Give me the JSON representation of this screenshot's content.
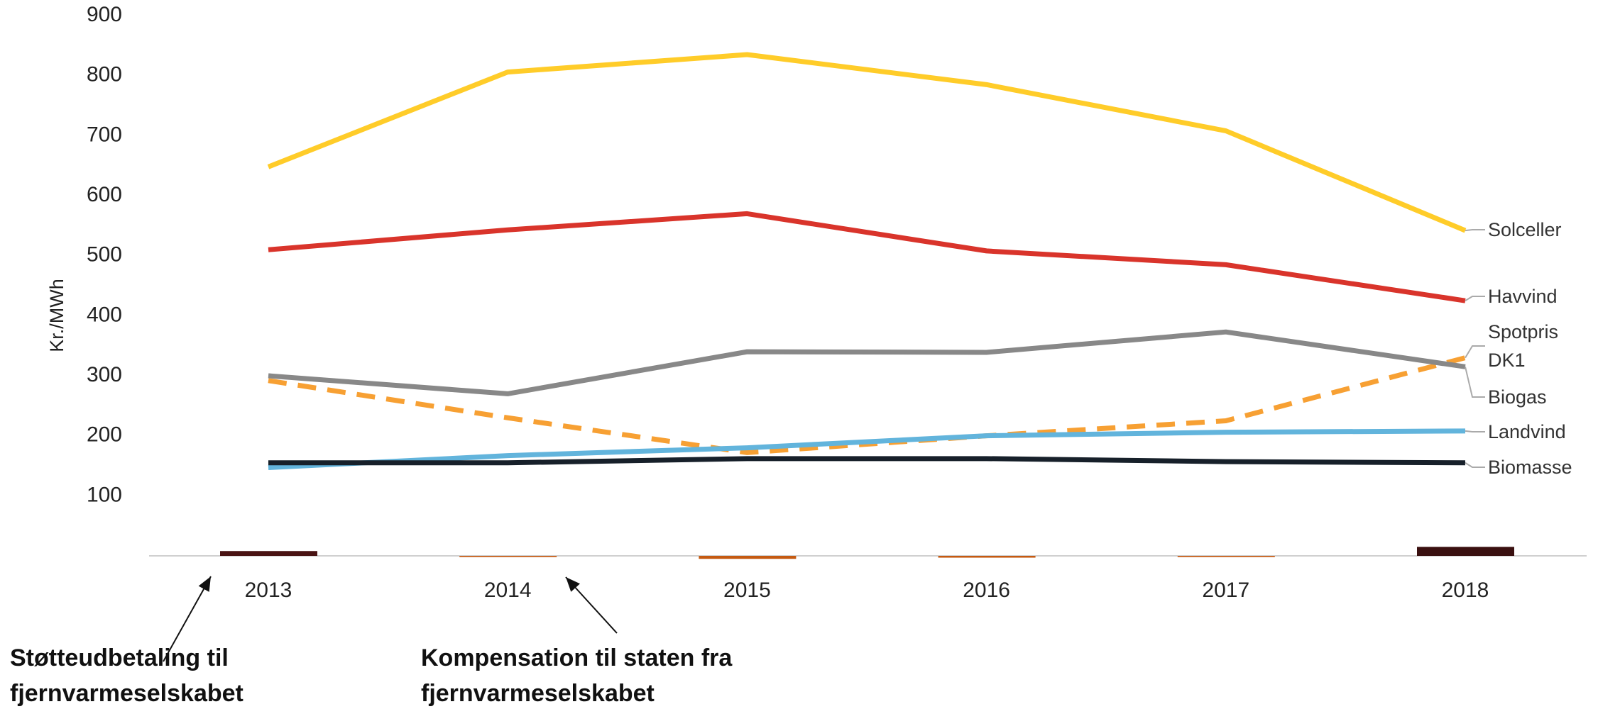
{
  "chart_data": {
    "type": "line",
    "y_label": "Kr./MWh",
    "categories": [
      "2013",
      "2014",
      "2015",
      "2016",
      "2017",
      "2018"
    ],
    "ylim": [
      0,
      900
    ],
    "yticks": [
      100,
      200,
      300,
      400,
      500,
      600,
      700,
      800,
      900
    ],
    "series": [
      {
        "name": "Solceller",
        "color": "#ffcc29",
        "values": [
          648,
          806,
          835,
          785,
          708,
          542
        ]
      },
      {
        "name": "Havvind",
        "color": "#d9342b",
        "values": [
          510,
          543,
          570,
          508,
          485,
          425
        ]
      },
      {
        "name": "Spotpris DK1",
        "color": "#f7a033",
        "dashed": true,
        "values": [
          292,
          230,
          172,
          200,
          225,
          330
        ]
      },
      {
        "name": "Biogas",
        "color": "#888888",
        "values": [
          300,
          270,
          340,
          339,
          373,
          315
        ]
      },
      {
        "name": "Landvind",
        "color": "#62b4dc",
        "values": [
          147,
          167,
          180,
          200,
          206,
          208
        ]
      },
      {
        "name": "Biomasse",
        "color": "#17202a",
        "values": [
          155,
          155,
          162,
          162,
          157,
          155
        ]
      }
    ],
    "bars": {
      "values": [
        8,
        -2,
        -5,
        -3,
        -2,
        15
      ],
      "colors": [
        "#4a1414",
        "#c55a11",
        "#c55a11",
        "#c55a11",
        "#c55a11",
        "#3a1010"
      ]
    },
    "annotations": [
      "Støtteudbetaling til fjernvarmeselskabet",
      "Kompensation til staten fra fjernvarmeselskabet"
    ]
  }
}
